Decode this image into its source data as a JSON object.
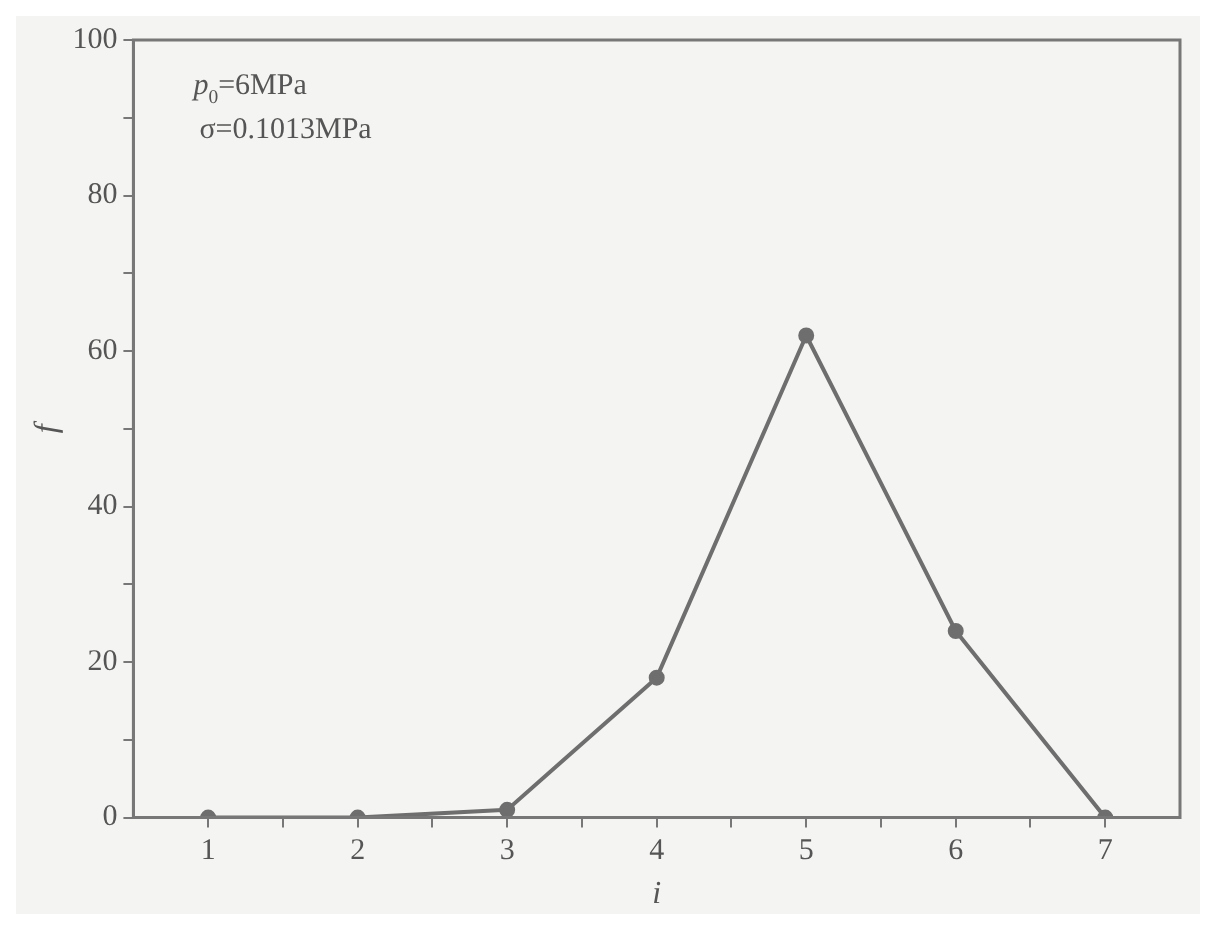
{
  "chart_data": {
    "type": "line",
    "xlabel": "i",
    "ylabel": "f",
    "annotations": [
      "p$_{0}$=6MPa",
      "σ=0.1013MPa"
    ],
    "x": [
      1,
      2,
      3,
      4,
      5,
      6,
      7
    ],
    "series": [
      {
        "color": "#6e6e6e",
        "values": [
          0,
          0,
          1,
          18,
          62,
          24,
          0
        ]
      }
    ],
    "xlim": [
      0.5,
      7.5
    ],
    "xticks": [
      1,
      {
        "value": 1.5,
        "label": null
      },
      2,
      {
        "value": 2.5,
        "label": null
      },
      3,
      {
        "value": 3.5,
        "label": null
      },
      4,
      {
        "value": 4.5,
        "label": null
      },
      5,
      {
        "value": 5.5,
        "label": null
      },
      6,
      {
        "value": 6.5,
        "label": null
      },
      7
    ],
    "ylim": [
      0,
      100
    ],
    "yticks": [
      0,
      {
        "value": 10,
        "label": null
      },
      20,
      {
        "value": 30,
        "label": null
      },
      40,
      {
        "value": 50,
        "label": null
      },
      60,
      {
        "value": 70,
        "label": null
      },
      80,
      {
        "value": 90,
        "label": null
      },
      100
    ],
    "grid": false,
    "legend": false,
    "marker": "circle",
    "line_style": "solid"
  }
}
